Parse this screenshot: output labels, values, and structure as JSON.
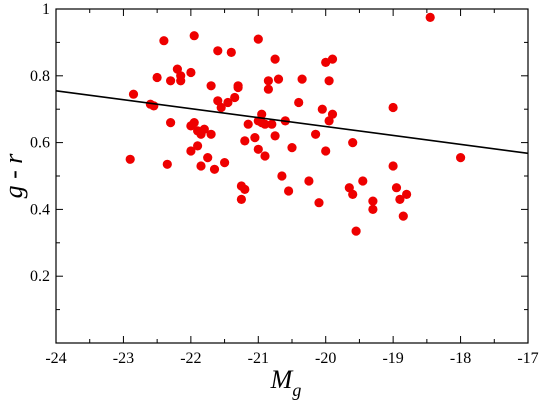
{
  "chart_data": {
    "type": "scatter",
    "title": "",
    "xlabel": "M",
    "xlabel_sub": "g",
    "ylabel": "g - r",
    "xlim": [
      -24,
      -17
    ],
    "ylim": [
      0,
      1
    ],
    "xticks": [
      "-24",
      "-23",
      "-22",
      "-21",
      "-20",
      "-19",
      "-18",
      "-17"
    ],
    "yticks": [
      "0.2",
      "0.4",
      "0.6",
      "0.8",
      "1"
    ],
    "grid": false,
    "colors": {
      "points": "#ee0000",
      "fit_line": "#000000",
      "frame": "#000000"
    },
    "series": [
      {
        "kind": "points",
        "points": [
          [
            -22.9,
            0.55
          ],
          [
            -22.85,
            0.745
          ],
          [
            -22.6,
            0.715
          ],
          [
            -22.55,
            0.71
          ],
          [
            -22.5,
            0.795
          ],
          [
            -22.4,
            0.905
          ],
          [
            -22.35,
            0.535
          ],
          [
            -22.3,
            0.66
          ],
          [
            -22.3,
            0.785
          ],
          [
            -22.2,
            0.82
          ],
          [
            -22.15,
            0.785
          ],
          [
            -22.15,
            0.8
          ],
          [
            -22.0,
            0.81
          ],
          [
            -22.0,
            0.575
          ],
          [
            -22.0,
            0.65
          ],
          [
            -21.95,
            0.92
          ],
          [
            -21.95,
            0.66
          ],
          [
            -21.9,
            0.635
          ],
          [
            -21.9,
            0.59
          ],
          [
            -21.85,
            0.625
          ],
          [
            -21.85,
            0.53
          ],
          [
            -21.8,
            0.64
          ],
          [
            -21.75,
            0.555
          ],
          [
            -21.7,
            0.77
          ],
          [
            -21.7,
            0.625
          ],
          [
            -21.65,
            0.52
          ],
          [
            -21.6,
            0.725
          ],
          [
            -21.6,
            0.875
          ],
          [
            -21.55,
            0.705
          ],
          [
            -21.5,
            0.54
          ],
          [
            -21.45,
            0.72
          ],
          [
            -21.4,
            0.87
          ],
          [
            -21.35,
            0.735
          ],
          [
            -21.3,
            0.77
          ],
          [
            -21.3,
            0.765
          ],
          [
            -21.25,
            0.47
          ],
          [
            -21.25,
            0.43
          ],
          [
            -21.2,
            0.605
          ],
          [
            -21.2,
            0.46
          ],
          [
            -21.15,
            0.655
          ],
          [
            -21.05,
            0.615
          ],
          [
            -21.0,
            0.91
          ],
          [
            -21.0,
            0.665
          ],
          [
            -21.0,
            0.58
          ],
          [
            -20.95,
            0.685
          ],
          [
            -20.95,
            0.66
          ],
          [
            -20.9,
            0.56
          ],
          [
            -20.9,
            0.655
          ],
          [
            -20.85,
            0.76
          ],
          [
            -20.85,
            0.785
          ],
          [
            -20.8,
            0.655
          ],
          [
            -20.75,
            0.62
          ],
          [
            -20.75,
            0.85
          ],
          [
            -20.7,
            0.79
          ],
          [
            -20.65,
            0.5
          ],
          [
            -20.6,
            0.665
          ],
          [
            -20.55,
            0.455
          ],
          [
            -20.5,
            0.585
          ],
          [
            -20.4,
            0.72
          ],
          [
            -20.35,
            0.79
          ],
          [
            -20.25,
            0.485
          ],
          [
            -20.15,
            0.625
          ],
          [
            -20.1,
            0.42
          ],
          [
            -20.05,
            0.7
          ],
          [
            -20.0,
            0.84
          ],
          [
            -20.0,
            0.575
          ],
          [
            -19.95,
            0.665
          ],
          [
            -19.95,
            0.785
          ],
          [
            -19.9,
            0.85
          ],
          [
            -19.9,
            0.685
          ],
          [
            -19.65,
            0.465
          ],
          [
            -19.6,
            0.445
          ],
          [
            -19.6,
            0.6
          ],
          [
            -19.55,
            0.335
          ],
          [
            -19.45,
            0.485
          ],
          [
            -19.3,
            0.425
          ],
          [
            -19.3,
            0.4
          ],
          [
            -19.0,
            0.53
          ],
          [
            -19.0,
            0.705
          ],
          [
            -18.95,
            0.465
          ],
          [
            -18.9,
            0.43
          ],
          [
            -18.85,
            0.38
          ],
          [
            -18.8,
            0.445
          ],
          [
            -18.45,
            0.975
          ],
          [
            -18.0,
            0.555
          ]
        ]
      },
      {
        "kind": "fit_line",
        "points": [
          [
            -24,
            0.755
          ],
          [
            -17,
            0.568
          ]
        ]
      }
    ]
  }
}
